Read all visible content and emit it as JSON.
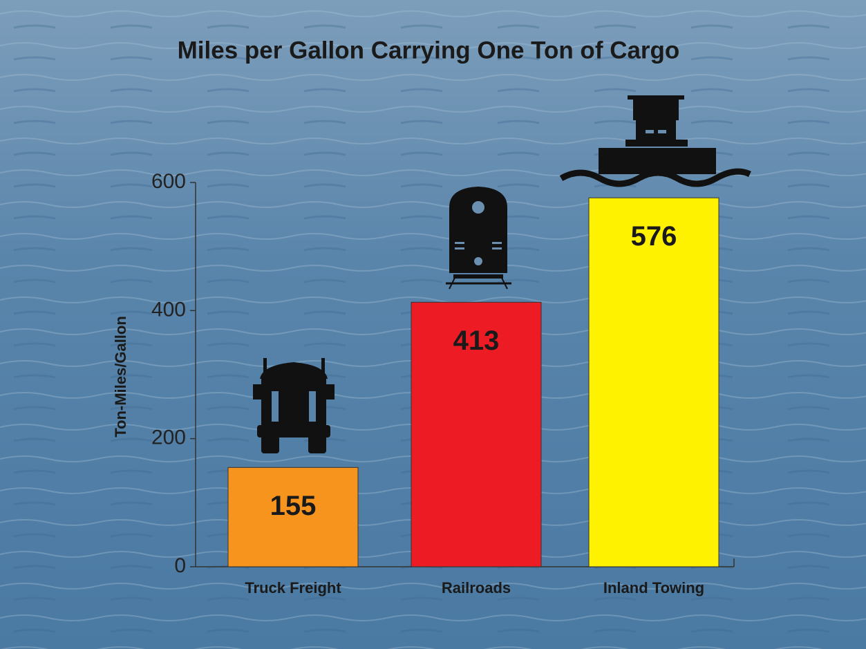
{
  "chart_data": {
    "type": "bar",
    "title": "Miles per Gallon Carrying One Ton of Cargo",
    "y_label": "Ton-Miles/Gallon",
    "categories": [
      "Truck Freight",
      "Railroads",
      "Inland Towing"
    ],
    "values": [
      155,
      413,
      576
    ],
    "colors": [
      "#f7941d",
      "#ed1c24",
      "#fff200"
    ],
    "ylim": [
      0,
      600
    ],
    "yticks": [
      0,
      200,
      400,
      600
    ],
    "grid": false
  }
}
